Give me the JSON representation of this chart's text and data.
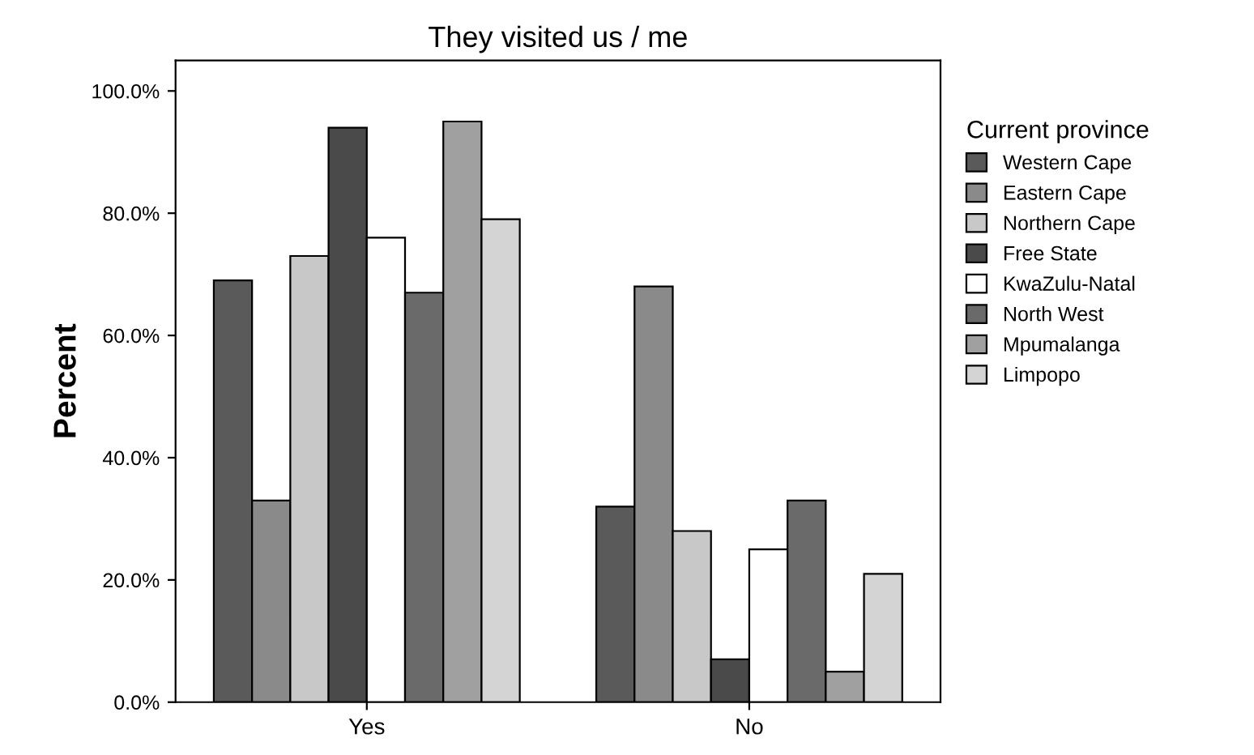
{
  "chart_data": {
    "type": "bar",
    "title": "They visited us / me",
    "ylabel": "Percent",
    "legend_title": "Current province",
    "categories": [
      "Yes",
      "No"
    ],
    "series": [
      {
        "name": "Western Cape",
        "color": "#5a5a5a",
        "values": [
          69,
          32
        ]
      },
      {
        "name": "Eastern Cape",
        "color": "#8a8a8a",
        "values": [
          33,
          68
        ]
      },
      {
        "name": "Northern Cape",
        "color": "#c8c8c8",
        "values": [
          73,
          28
        ]
      },
      {
        "name": "Free State",
        "color": "#4a4a4a",
        "values": [
          94,
          7
        ]
      },
      {
        "name": "KwaZulu-Natal",
        "color": "#ffffff",
        "values": [
          76,
          25
        ]
      },
      {
        "name": "North West",
        "color": "#6a6a6a",
        "values": [
          67,
          33
        ]
      },
      {
        "name": "Mpumalanga",
        "color": "#a0a0a0",
        "values": [
          95,
          5
        ]
      },
      {
        "name": "Limpopo",
        "color": "#d4d4d4",
        "values": [
          79,
          21
        ]
      }
    ],
    "ylim": [
      0,
      105
    ],
    "yticks": [
      {
        "value": 0,
        "label": "0.0%"
      },
      {
        "value": 20,
        "label": "20.0%"
      },
      {
        "value": 40,
        "label": "40.0%"
      },
      {
        "value": 60,
        "label": "60.0%"
      },
      {
        "value": 80,
        "label": "80.0%"
      },
      {
        "value": 100,
        "label": "100.0%"
      }
    ],
    "grid": false,
    "legend": "right"
  }
}
